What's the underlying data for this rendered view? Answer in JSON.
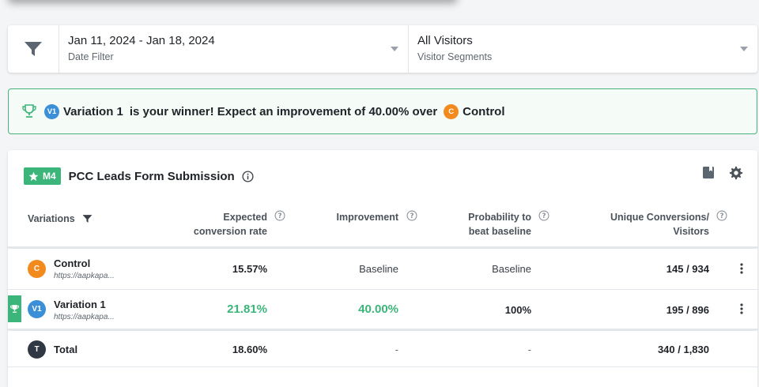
{
  "filters": {
    "date": {
      "value": "Jan 11, 2024 - Jan 18, 2024",
      "label": "Date Filter"
    },
    "segment": {
      "value": "All Visitors",
      "label": "Visitor Segments"
    }
  },
  "winner": {
    "winner_badge": "V1",
    "winner_name": "Variation 1",
    "message": "is your winner! Expect an improvement of 40.00% over",
    "baseline_badge": "C",
    "baseline_name": "Control"
  },
  "goal": {
    "badge": "M4",
    "title": "PCC Leads Form Submission"
  },
  "table": {
    "headers": {
      "variations": "Variations",
      "expected_l1": "Expected",
      "expected_l2": "conversion rate",
      "improvement": "Improvement",
      "prob_l1": "Probability to",
      "prob_l2": "beat baseline",
      "unique_l1": "Unique Conversions/",
      "unique_l2": "Visitors"
    },
    "rows": [
      {
        "badge": "C",
        "name": "Control",
        "url": "https://aapkapa...",
        "rate": "15.57%",
        "improvement": "Baseline",
        "probability": "Baseline",
        "conversions": "145 / 934"
      },
      {
        "badge": "V1",
        "name": "Variation 1",
        "url": "https://aapkapa...",
        "rate": "21.81%",
        "improvement": "40.00%",
        "probability": "100%",
        "conversions": "195 / 896"
      }
    ],
    "total": {
      "badge": "T",
      "name": "Total",
      "rate": "18.60%",
      "improvement": "-",
      "probability": "-",
      "conversions": "340 / 1,830"
    }
  },
  "colors": {
    "accent_green": "#3bb57a",
    "control_orange": "#f28a1e",
    "variation_blue": "#3b8fd6"
  }
}
